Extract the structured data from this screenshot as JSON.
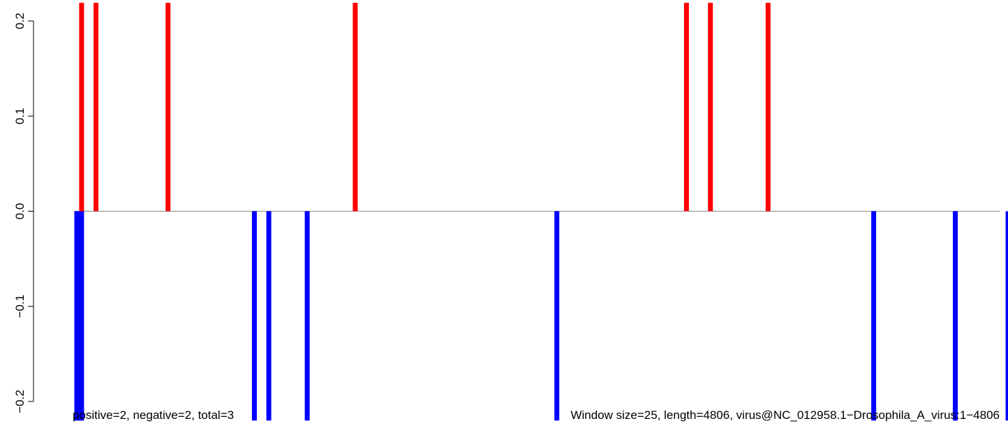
{
  "chart_data": {
    "type": "bar",
    "title": "",
    "xlabel": "",
    "ylabel": "",
    "xlim": [
      0,
      4806
    ],
    "ylim": [
      -0.2,
      0.2
    ],
    "yticks": [
      {
        "value": 0.2,
        "label": "0.2"
      },
      {
        "value": 0.1,
        "label": "0.1"
      },
      {
        "value": 0.0,
        "label": "0.0"
      },
      {
        "value": -0.1,
        "label": "−0.1"
      },
      {
        "value": -0.2,
        "label": "−0.2"
      }
    ],
    "grid": false,
    "baseline": 0,
    "series": [
      {
        "color": "#ff0000",
        "points": [
          {
            "x": 25,
            "y": 0.22
          },
          {
            "x": 100,
            "y": 0.22
          },
          {
            "x": 475,
            "y": 0.22
          },
          {
            "x": 1450,
            "y": 0.22
          },
          {
            "x": 3175,
            "y": 0.22
          },
          {
            "x": 3300,
            "y": 0.22
          },
          {
            "x": 3600,
            "y": 0.22
          }
        ]
      },
      {
        "color": "#0000ff",
        "points": [
          {
            "x": 0,
            "y": -0.22
          },
          {
            "x": 12,
            "y": -0.22
          },
          {
            "x": 25,
            "y": -0.22
          },
          {
            "x": 925,
            "y": -0.22
          },
          {
            "x": 1000,
            "y": -0.22
          },
          {
            "x": 1200,
            "y": -0.22
          },
          {
            "x": 2500,
            "y": -0.22
          },
          {
            "x": 4150,
            "y": -0.22
          },
          {
            "x": 4575,
            "y": -0.22
          },
          {
            "x": 4850,
            "y": -0.22
          }
        ]
      }
    ],
    "footer_left": "positive=2, negative=2, total=3",
    "footer_right": "Window size=25, length=4806, virus@NC_012958.1−Drosophila_A_virus:1−4806"
  }
}
